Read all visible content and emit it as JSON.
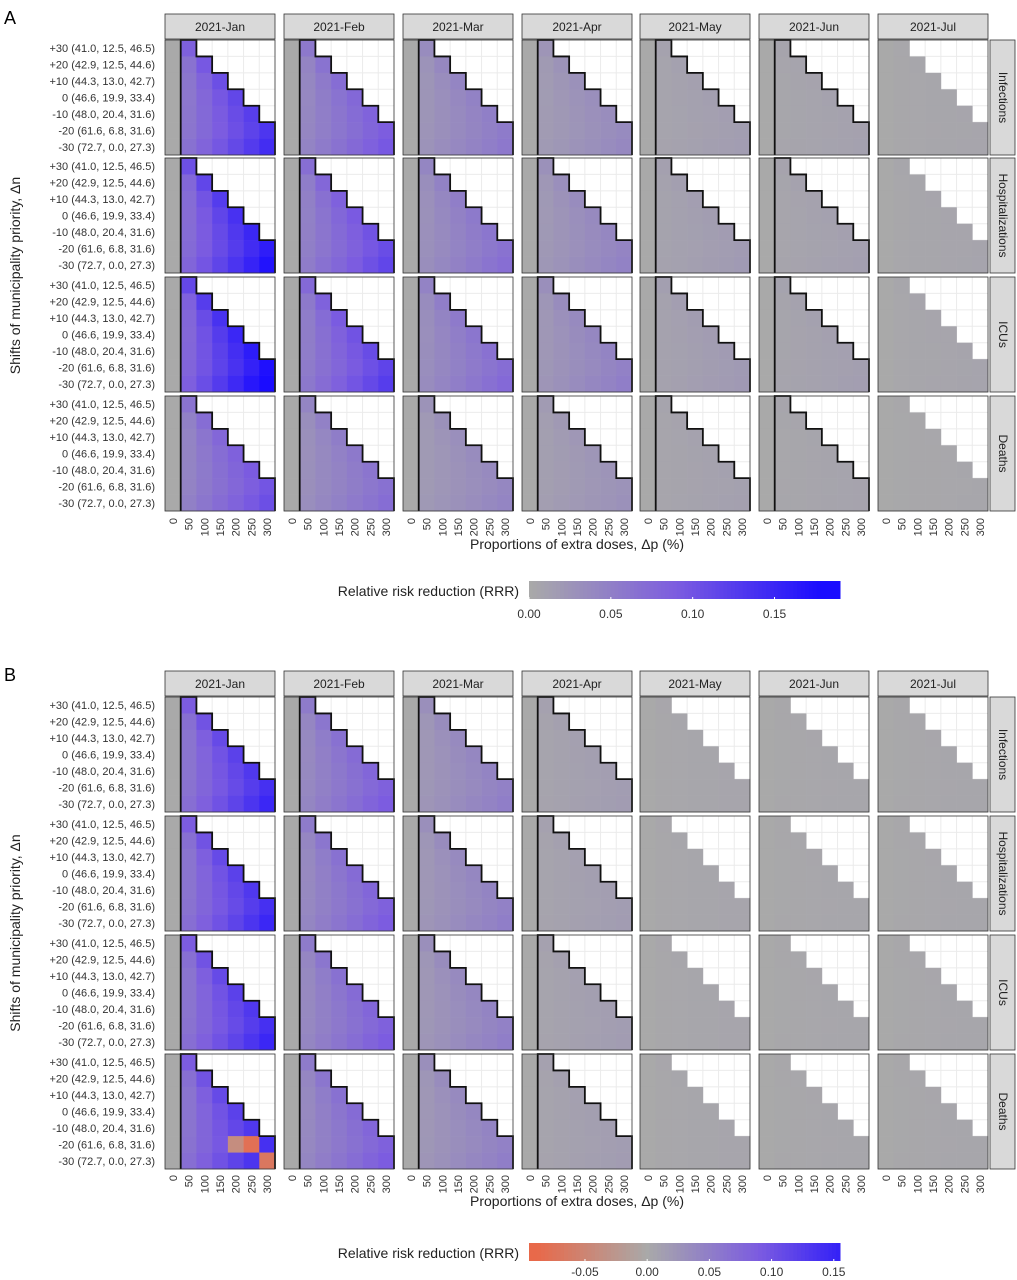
{
  "figure": {
    "shared": {
      "months": [
        "2021-Jan",
        "2021-Feb",
        "2021-Mar",
        "2021-Apr",
        "2021-May",
        "2021-Jun",
        "2021-Jul"
      ],
      "outcomes": [
        "Infections",
        "Hospitalizations",
        "ICUs",
        "Deaths"
      ],
      "y_tick_labels": [
        "+30 (41.0, 12.5, 46.5)",
        "+20 (42.9, 12.5, 44.6)",
        "+10 (44.3, 13.0, 42.7)",
        "0 (46.6, 19.9, 33.4)",
        "-10 (48.0, 20.4, 31.6)",
        "-20 (61.6,   6.8, 31.6)",
        "-30 (72.7,   0.0, 27.3)"
      ],
      "x_tick_labels": [
        "0",
        "50",
        "100",
        "150",
        "200",
        "250",
        "300"
      ],
      "xlabel": "Proportions of extra doses, Δp (%)",
      "ylabel": "Shifts of municipality priority, Δn",
      "colors": {
        "negative": "#e8694a",
        "zero": "#a9a9a9",
        "mid": "#7c5ce0",
        "max": "#1a0cff",
        "strip": "#d9d9d9",
        "grid": "#ebebeb"
      }
    },
    "panels": [
      {
        "letter": "A",
        "legend": {
          "title": "Relative risk reduction (RRR)",
          "tick_labels": [
            "0.00",
            "0.05",
            "0.10",
            "0.15"
          ],
          "tick_values": [
            0,
            0.05,
            0.1,
            0.15
          ],
          "range": [
            0,
            0.19
          ]
        }
      },
      {
        "letter": "B",
        "legend": {
          "title": "Relative risk reduction (RRR)",
          "tick_labels": [
            "-0.05",
            "0.00",
            "0.05",
            "0.10",
            "0.15"
          ],
          "tick_values": [
            -0.05,
            0,
            0.05,
            0.1,
            0.15
          ],
          "range": [
            -0.095,
            0.155
          ]
        }
      }
    ]
  },
  "chart_data": [
    {
      "type": "heatmap",
      "panel": "A",
      "layout": "faceted grid: rows = outcome, columns = month",
      "x": [
        0,
        50,
        100,
        150,
        200,
        250,
        300
      ],
      "y": [
        30,
        20,
        10,
        0,
        -10,
        -20,
        -30
      ],
      "feasible_x_count_by_y": [
        2,
        3,
        4,
        5,
        6,
        7,
        7
      ],
      "value_scale": "relative risk reduction (RRR)",
      "approx_max_rrr_by_month": {
        "2021-Jan": 0.15,
        "2021-Feb": 0.1,
        "2021-Mar": 0.06,
        "2021-Apr": 0.04,
        "2021-May": 0.015,
        "2021-Jun": 0.01,
        "2021-Jul": 0.005
      },
      "outcome_multiplier": {
        "Infections": 0.95,
        "Hospitalizations": 1.15,
        "ICUs": 1.25,
        "Deaths": 0.7
      }
    },
    {
      "type": "heatmap",
      "panel": "B",
      "layout": "faceted grid: rows = outcome, columns = month",
      "x": [
        0,
        50,
        100,
        150,
        200,
        250,
        300
      ],
      "y": [
        30,
        20,
        10,
        0,
        -10,
        -20,
        -30
      ],
      "feasible_x_count_by_y": [
        2,
        3,
        4,
        5,
        6,
        7,
        7
      ],
      "value_scale": "relative risk reduction (RRR)",
      "approx_max_rrr_by_month": {
        "2021-Jan": 0.15,
        "2021-Feb": 0.09,
        "2021-Mar": 0.05,
        "2021-Apr": 0.015,
        "2021-May": 0.005,
        "2021-Jun": 0.004,
        "2021-Jul": 0.004
      },
      "negative_cells": [
        {
          "month": "2021-Jan",
          "outcome": "Deaths",
          "x": 250,
          "y": -20,
          "rrr": -0.08
        },
        {
          "month": "2021-Jan",
          "outcome": "Deaths",
          "x": 300,
          "y": -30,
          "rrr": -0.07
        },
        {
          "month": "2021-Jan",
          "outcome": "Deaths",
          "x": 200,
          "y": -20,
          "rrr": -0.04
        }
      ]
    }
  ]
}
